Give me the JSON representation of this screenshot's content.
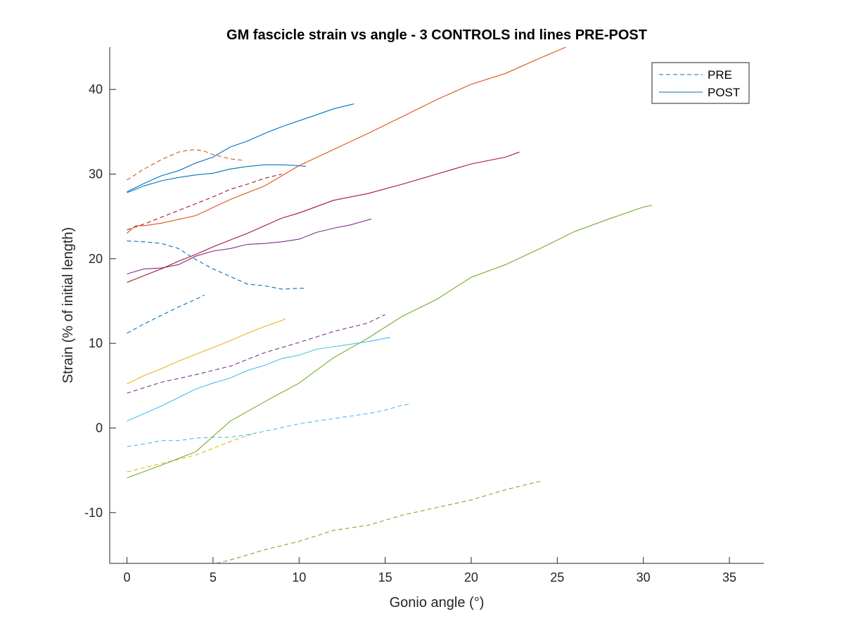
{
  "chart_data": {
    "type": "line",
    "title": "GM fascicle strain vs angle - 3 CONTROLS ind lines PRE-POST",
    "xlabel": "Gonio angle (°)",
    "ylabel": "Strain (% of initial length)",
    "xlim": [
      -1,
      37
    ],
    "ylim": [
      -16,
      45
    ],
    "xticks": [
      0,
      5,
      10,
      15,
      20,
      25,
      30,
      35
    ],
    "yticks": [
      -10,
      0,
      10,
      20,
      30,
      40
    ],
    "xtick_labels": [
      "0",
      "5",
      "10",
      "15",
      "20",
      "25",
      "30",
      "35"
    ],
    "ytick_labels": [
      "-10",
      "0",
      "10",
      "20",
      "30",
      "40"
    ],
    "grid": false,
    "legend": {
      "placement": "top-right",
      "entries": [
        {
          "label": "PRE",
          "style": "dashed",
          "color": "#0072BD"
        },
        {
          "label": "POST",
          "style": "solid",
          "color": "#0072BD"
        }
      ]
    },
    "series": [
      {
        "style": "dashed",
        "color": "#0072BD",
        "x": [
          0,
          1,
          2,
          3,
          4,
          4.5
        ],
        "y": [
          11.2,
          12.3,
          13.3,
          14.3,
          15.2,
          15.7
        ]
      },
      {
        "style": "dashed",
        "color": "#0072BD",
        "x": [
          0,
          1,
          2,
          3,
          4,
          5,
          6,
          7,
          8,
          9,
          10,
          10.3
        ],
        "y": [
          22.1,
          22.0,
          21.8,
          21.2,
          19.9,
          18.8,
          17.9,
          17.0,
          16.8,
          16.4,
          16.5,
          16.5
        ]
      },
      {
        "style": "dashed",
        "color": "#D95319",
        "x": [
          0,
          1,
          2,
          3,
          3.5,
          4,
          4.5,
          5,
          6,
          6.8
        ],
        "y": [
          29.3,
          30.6,
          31.7,
          32.6,
          32.8,
          32.9,
          32.7,
          32.3,
          31.8,
          31.6
        ]
      },
      {
        "style": "dashed",
        "color": "#EDB120",
        "x": [
          0,
          1,
          2,
          3,
          4,
          5,
          6,
          7,
          7.5
        ],
        "y": [
          -5.2,
          -4.7,
          -4.2,
          -3.7,
          -3.2,
          -2.4,
          -1.6,
          -0.9,
          -0.6
        ]
      },
      {
        "style": "dashed",
        "color": "#7E2F8E",
        "x": [
          0,
          2,
          4,
          6,
          8,
          10,
          12,
          14,
          15
        ],
        "y": [
          4.1,
          5.4,
          6.3,
          7.3,
          8.9,
          10.1,
          11.4,
          12.4,
          13.4
        ]
      },
      {
        "style": "dashed",
        "color": "#77AC30",
        "x": [
          5.2,
          6,
          8,
          10,
          12,
          14,
          16,
          18,
          20,
          22,
          24
        ],
        "y": [
          -16.0,
          -15.6,
          -14.4,
          -13.4,
          -12.1,
          -11.5,
          -10.3,
          -9.4,
          -8.5,
          -7.3,
          -6.3
        ]
      },
      {
        "style": "dashed",
        "color": "#4DBEEE",
        "x": [
          0,
          1,
          2,
          3,
          4,
          5,
          6,
          7,
          8,
          10,
          12,
          14,
          15,
          16,
          16.5
        ],
        "y": [
          -2.2,
          -1.9,
          -1.5,
          -1.5,
          -1.2,
          -1.1,
          -1.1,
          -0.8,
          -0.4,
          0.5,
          1.1,
          1.7,
          2.1,
          2.7,
          2.8
        ]
      },
      {
        "style": "dashed",
        "color": "#A2142F",
        "x": [
          0,
          1,
          2,
          3,
          4,
          5,
          6,
          7,
          8,
          9
        ],
        "y": [
          23.4,
          24.1,
          24.9,
          25.7,
          26.5,
          27.3,
          28.2,
          28.8,
          29.5,
          30.0
        ]
      },
      {
        "style": "solid",
        "color": "#0072BD",
        "x": [
          0,
          1,
          2,
          3,
          4,
          5,
          6,
          7,
          8,
          9,
          10,
          11,
          12,
          13,
          13.2
        ],
        "y": [
          27.9,
          28.9,
          29.8,
          30.4,
          31.3,
          32.0,
          33.2,
          33.9,
          34.8,
          35.6,
          36.3,
          37.0,
          37.7,
          38.2,
          38.3
        ]
      },
      {
        "style": "solid",
        "color": "#0072BD",
        "x": [
          0,
          1,
          2,
          3,
          4,
          5,
          6,
          7,
          8,
          9,
          10,
          10.4
        ],
        "y": [
          27.8,
          28.6,
          29.2,
          29.6,
          29.9,
          30.1,
          30.6,
          30.9,
          31.1,
          31.1,
          31.0,
          30.9
        ]
      },
      {
        "style": "solid",
        "color": "#D95319",
        "x": [
          0,
          0.5,
          1,
          2,
          4,
          6,
          8,
          10,
          12,
          14,
          16,
          18,
          20,
          22,
          24,
          25.5
        ],
        "y": [
          23.0,
          23.9,
          23.9,
          24.2,
          25.1,
          27.0,
          28.6,
          31.0,
          32.9,
          34.8,
          36.8,
          38.8,
          40.6,
          41.9,
          43.7,
          45.0
        ]
      },
      {
        "style": "solid",
        "color": "#EDB120",
        "x": [
          0,
          1,
          2,
          3,
          4,
          5,
          6,
          7,
          8,
          9,
          9.2
        ],
        "y": [
          5.2,
          6.2,
          7.0,
          7.9,
          8.7,
          9.5,
          10.3,
          11.2,
          12.0,
          12.7,
          12.9
        ]
      },
      {
        "style": "solid",
        "color": "#7E2F8E",
        "x": [
          0,
          1,
          2,
          3,
          4,
          5,
          6,
          7,
          8,
          9,
          10,
          11,
          12,
          13,
          14.2
        ],
        "y": [
          18.2,
          18.8,
          18.9,
          19.3,
          20.3,
          20.9,
          21.2,
          21.7,
          21.8,
          22.0,
          22.3,
          23.1,
          23.6,
          24.0,
          24.7
        ]
      },
      {
        "style": "solid",
        "color": "#77AC30",
        "x": [
          0,
          2,
          4,
          6,
          8,
          10,
          12,
          14,
          16,
          18,
          20,
          22,
          24,
          26,
          28,
          30,
          30.5
        ],
        "y": [
          -5.9,
          -4.4,
          -2.8,
          0.8,
          3.1,
          5.3,
          8.3,
          10.6,
          13.2,
          15.2,
          17.8,
          19.3,
          21.2,
          23.2,
          24.7,
          26.1,
          26.3
        ]
      },
      {
        "style": "solid",
        "color": "#4DBEEE",
        "x": [
          0,
          1,
          2,
          3,
          4,
          5,
          6,
          7,
          8,
          9,
          10,
          11,
          12,
          13,
          14,
          15,
          15.3
        ],
        "y": [
          0.8,
          1.7,
          2.6,
          3.6,
          4.6,
          5.3,
          5.9,
          6.8,
          7.4,
          8.2,
          8.6,
          9.3,
          9.6,
          9.9,
          10.2,
          10.6,
          10.7
        ]
      },
      {
        "style": "solid",
        "color": "#A2142F",
        "x": [
          0,
          1,
          2,
          3,
          4,
          5,
          6,
          7,
          8,
          9,
          10,
          12,
          14,
          16,
          18,
          20,
          22,
          22.8
        ],
        "y": [
          17.2,
          18.0,
          18.8,
          19.7,
          20.5,
          21.4,
          22.2,
          23.0,
          23.9,
          24.8,
          25.4,
          26.9,
          27.7,
          28.8,
          30.0,
          31.2,
          32.0,
          32.6
        ]
      }
    ]
  }
}
